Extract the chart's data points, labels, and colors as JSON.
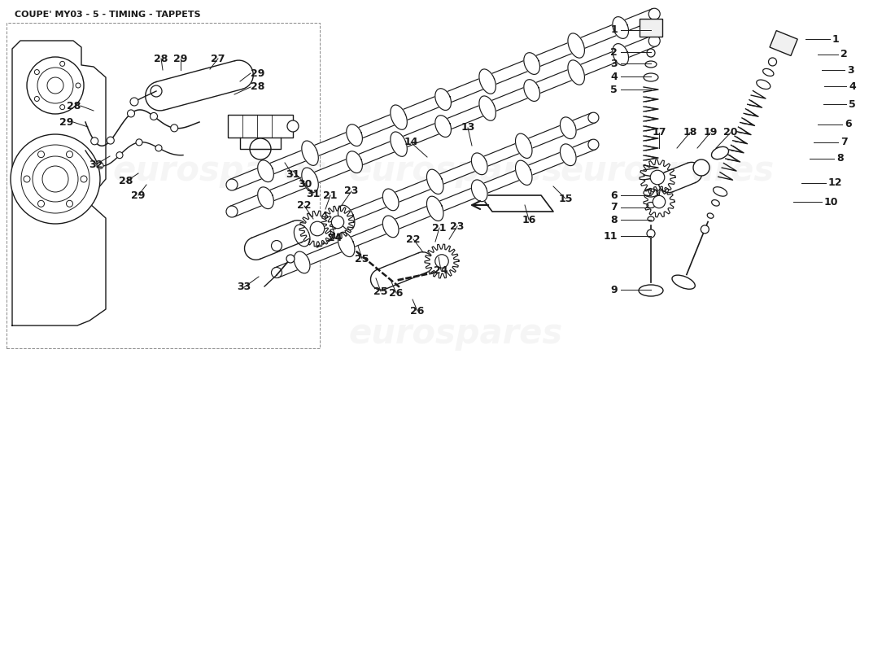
{
  "title": "COUPE' MY03 - 5 - TIMING - TAPPETS",
  "title_fontsize": 8,
  "bg_color": "#ffffff",
  "line_color": "#1a1a1a",
  "watermark": "eurospares",
  "watermark_color": "#cccccc",
  "label_fontsize": 8,
  "bold_label_fontsize": 9
}
